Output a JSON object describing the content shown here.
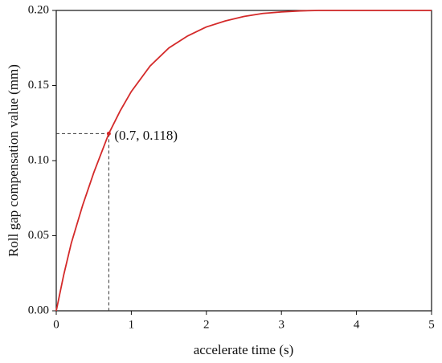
{
  "chart_data": {
    "type": "line",
    "xlabel": "accelerate time (s)",
    "ylabel": "Roll gap compensation value (mm)",
    "x": [
      0,
      0.1,
      0.2,
      0.35,
      0.5,
      0.7,
      0.85,
      1,
      1.25,
      1.5,
      1.75,
      2,
      2.25,
      2.5,
      2.75,
      3,
      3.25,
      3.5,
      4,
      4.5,
      5
    ],
    "values": [
      0,
      0.024,
      0.045,
      0.07,
      0.092,
      0.118,
      0.133,
      0.146,
      0.163,
      0.175,
      0.183,
      0.189,
      0.193,
      0.196,
      0.198,
      0.199,
      0.1997,
      0.2,
      0.2,
      0.2,
      0.2
    ],
    "color": "#d42a2a",
    "xlim": [
      0,
      5
    ],
    "xticks": [
      0,
      1,
      2,
      3,
      4,
      5
    ],
    "ylim": [
      0,
      0.2
    ],
    "yticks": [
      {
        "value": 0,
        "label": "0.00"
      },
      {
        "value": 0.05,
        "label": "0.05"
      },
      {
        "value": 0.1,
        "label": "0.10"
      },
      {
        "value": 0.15,
        "label": "0.15"
      },
      {
        "value": 0.2,
        "label": "0.20"
      }
    ],
    "annotation": {
      "text": "(0.7, 0.118)",
      "x": 0.7,
      "y": 0.118
    }
  }
}
